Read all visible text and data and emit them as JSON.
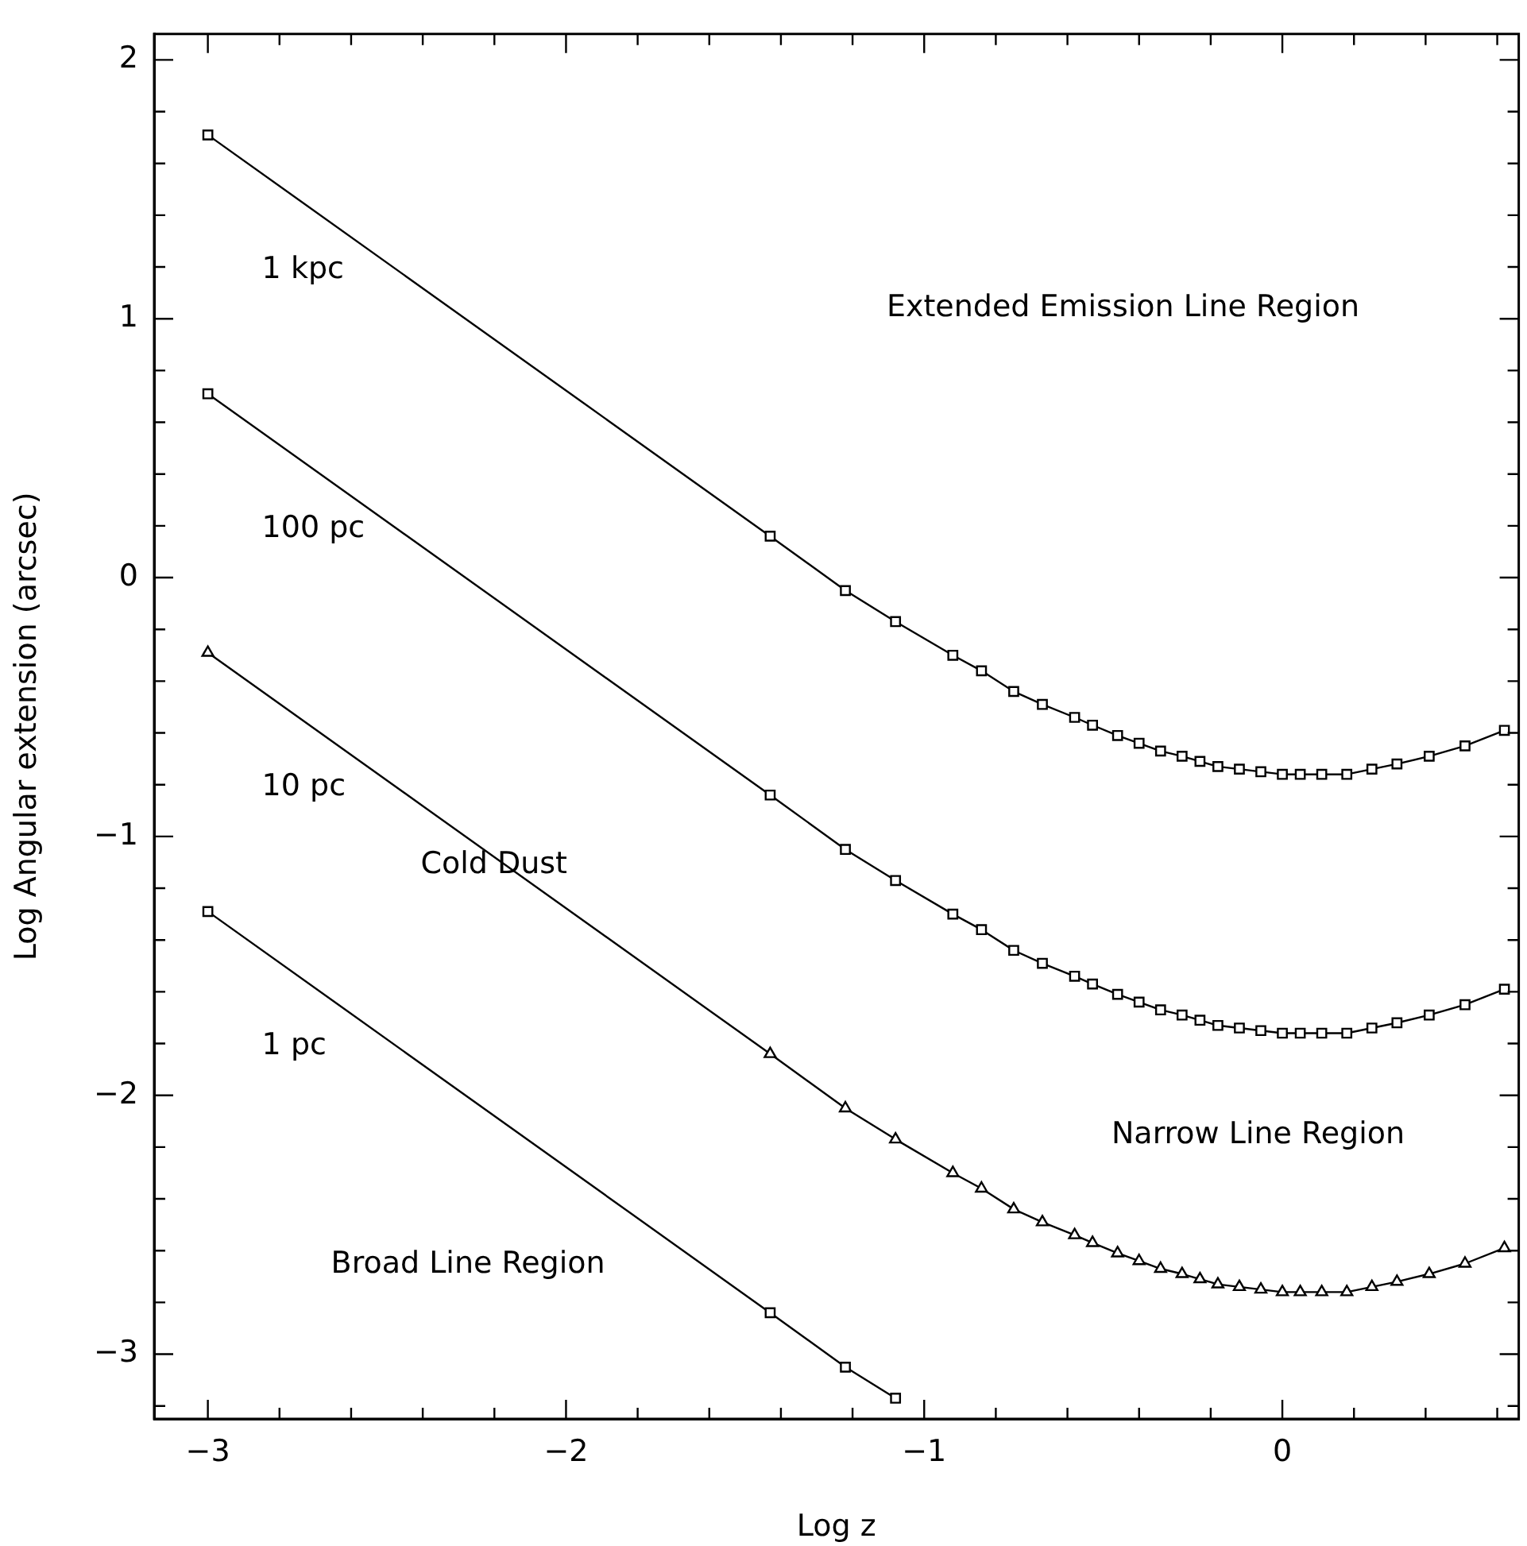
{
  "chart_data": {
    "type": "line",
    "xlabel": "Log z",
    "ylabel": "Log Angular extension (arcsec)",
    "x": [
      -3,
      -1.43,
      -1.22,
      -1.08,
      -0.92,
      -0.84,
      -0.75,
      -0.67,
      -0.58,
      -0.53,
      -0.46,
      -0.4,
      -0.34,
      -0.28,
      -0.23,
      -0.18,
      -0.12,
      -0.06,
      0,
      0.05,
      0.11,
      0.18,
      0.25,
      0.32,
      0.41,
      0.51,
      0.62
    ],
    "series": [
      {
        "name": "1 kpc",
        "color": "#000000",
        "marker": "square",
        "values": [
          1.71,
          0.16,
          -0.05,
          -0.17,
          -0.3,
          -0.36,
          -0.44,
          -0.49,
          -0.54,
          -0.57,
          -0.61,
          -0.64,
          -0.67,
          -0.69,
          -0.71,
          -0.73,
          -0.74,
          -0.75,
          -0.76,
          -0.76,
          -0.76,
          -0.76,
          -0.74,
          -0.72,
          -0.69,
          -0.65,
          -0.59
        ]
      },
      {
        "name": "100 pc",
        "color": "#000000",
        "marker": "square",
        "values": [
          0.71,
          -0.84,
          -1.05,
          -1.17,
          -1.3,
          -1.36,
          -1.44,
          -1.49,
          -1.54,
          -1.57,
          -1.61,
          -1.64,
          -1.67,
          -1.69,
          -1.71,
          -1.73,
          -1.74,
          -1.75,
          -1.76,
          -1.76,
          -1.76,
          -1.76,
          -1.74,
          -1.72,
          -1.69,
          -1.65,
          -1.59
        ]
      },
      {
        "name": "10 pc",
        "color": "#000000",
        "marker": "triangle",
        "values": [
          -0.29,
          -1.84,
          -2.05,
          -2.17,
          -2.3,
          -2.36,
          -2.44,
          -2.49,
          -2.54,
          -2.57,
          -2.61,
          -2.64,
          -2.67,
          -2.69,
          -2.71,
          -2.73,
          -2.74,
          -2.75,
          -2.76,
          -2.76,
          -2.76,
          -2.76,
          -2.74,
          -2.72,
          -2.69,
          -2.65,
          -2.59
        ]
      },
      {
        "name": "1 pc",
        "color": "#000000",
        "marker": "square",
        "x": [
          -3,
          -1.43,
          -1.22,
          -1.08
        ],
        "values": [
          -1.29,
          -2.84,
          -3.05,
          -3.17
        ]
      }
    ],
    "annotations": [
      "Extended Emission Line Region",
      "Cold Dust",
      "Narrow Line Region",
      "Broad Line Region"
    ],
    "xlim": [
      -3.15,
      0.66
    ],
    "ylim": [
      -3.25,
      2.1
    ],
    "xticks": [
      -3,
      {
        "value": -2.8,
        "label": null
      },
      {
        "value": -2.6,
        "label": null
      },
      {
        "value": -2.4,
        "label": null
      },
      {
        "value": -2.2,
        "label": null
      },
      -2,
      {
        "value": -1.8,
        "label": null
      },
      {
        "value": -1.6,
        "label": null
      },
      {
        "value": -1.4,
        "label": null
      },
      {
        "value": -1.2,
        "label": null
      },
      -1,
      {
        "value": -0.8,
        "label": null
      },
      {
        "value": -0.6,
        "label": null
      },
      {
        "value": -0.4,
        "label": null
      },
      {
        "value": -0.2,
        "label": null
      },
      0,
      {
        "value": 0.2,
        "label": null
      },
      {
        "value": 0.4,
        "label": null
      },
      {
        "value": 0.6,
        "label": null
      }
    ],
    "yticks": [
      {
        "value": -3.2,
        "label": null
      },
      -3,
      {
        "value": -2.8,
        "label": null
      },
      {
        "value": -2.6,
        "label": null
      },
      {
        "value": -2.4,
        "label": null
      },
      {
        "value": -2.2,
        "label": null
      },
      -2,
      {
        "value": -1.8,
        "label": null
      },
      {
        "value": -1.6,
        "label": null
      },
      {
        "value": -1.4,
        "label": null
      },
      {
        "value": -1.2,
        "label": null
      },
      -1,
      {
        "value": -0.8,
        "label": null
      },
      {
        "value": -0.6,
        "label": null
      },
      {
        "value": -0.4,
        "label": null
      },
      {
        "value": -0.2,
        "label": null
      },
      0,
      {
        "value": 0.2,
        "label": null
      },
      {
        "value": 0.4,
        "label": null
      },
      {
        "value": 0.6,
        "label": null
      },
      {
        "value": 0.8,
        "label": null
      },
      1,
      {
        "value": 1.2,
        "label": null
      },
      {
        "value": 1.4,
        "label": null
      },
      {
        "value": 1.6,
        "label": null
      },
      {
        "value": 1.8,
        "label": null
      },
      2
    ],
    "grid": false,
    "legend": false
  }
}
